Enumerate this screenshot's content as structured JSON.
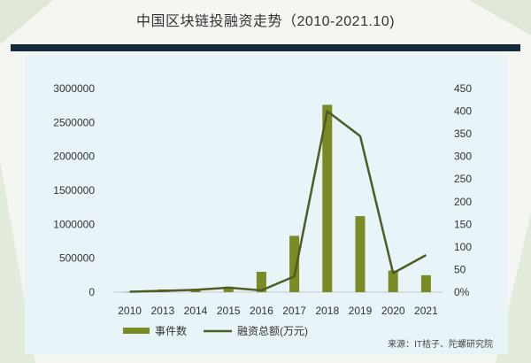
{
  "title": "中国区块链投融资走势（2010-2021.10)",
  "source": "来源：IT桔子、陀螺研究院",
  "colors": {
    "bar": "#7a8b25",
    "line": "#4e5d24",
    "title_bar": "#152a3a",
    "panel": "#e9f4f8"
  },
  "chart_data": {
    "type": "bar",
    "categories": [
      "2010",
      "2013",
      "2014",
      "2015",
      "2016",
      "2017",
      "2018",
      "2019",
      "2020",
      "2021"
    ],
    "series": [
      {
        "name": "事件数",
        "type": "bar",
        "axis": "left",
        "values": [
          5000,
          40000,
          50000,
          80000,
          300000,
          830000,
          2760000,
          1120000,
          320000,
          250000
        ]
      },
      {
        "name": "融资总额(万元)",
        "type": "line",
        "axis": "right",
        "values": [
          1,
          3,
          5,
          10,
          4,
          35,
          400,
          345,
          42,
          82
        ]
      }
    ],
    "left_axis": {
      "ylim": [
        0,
        3000000
      ],
      "ticks": [
        "0",
        "500000",
        "1000000",
        "1500000",
        "2000000",
        "2500000",
        "3000000"
      ]
    },
    "right_axis": {
      "ylim": [
        0,
        450
      ],
      "ticks": [
        "0%",
        "50",
        "100",
        "150",
        "200",
        "250",
        "300",
        "350",
        "400",
        "450"
      ]
    },
    "legend_placement": "bottom-left",
    "grid": false
  }
}
